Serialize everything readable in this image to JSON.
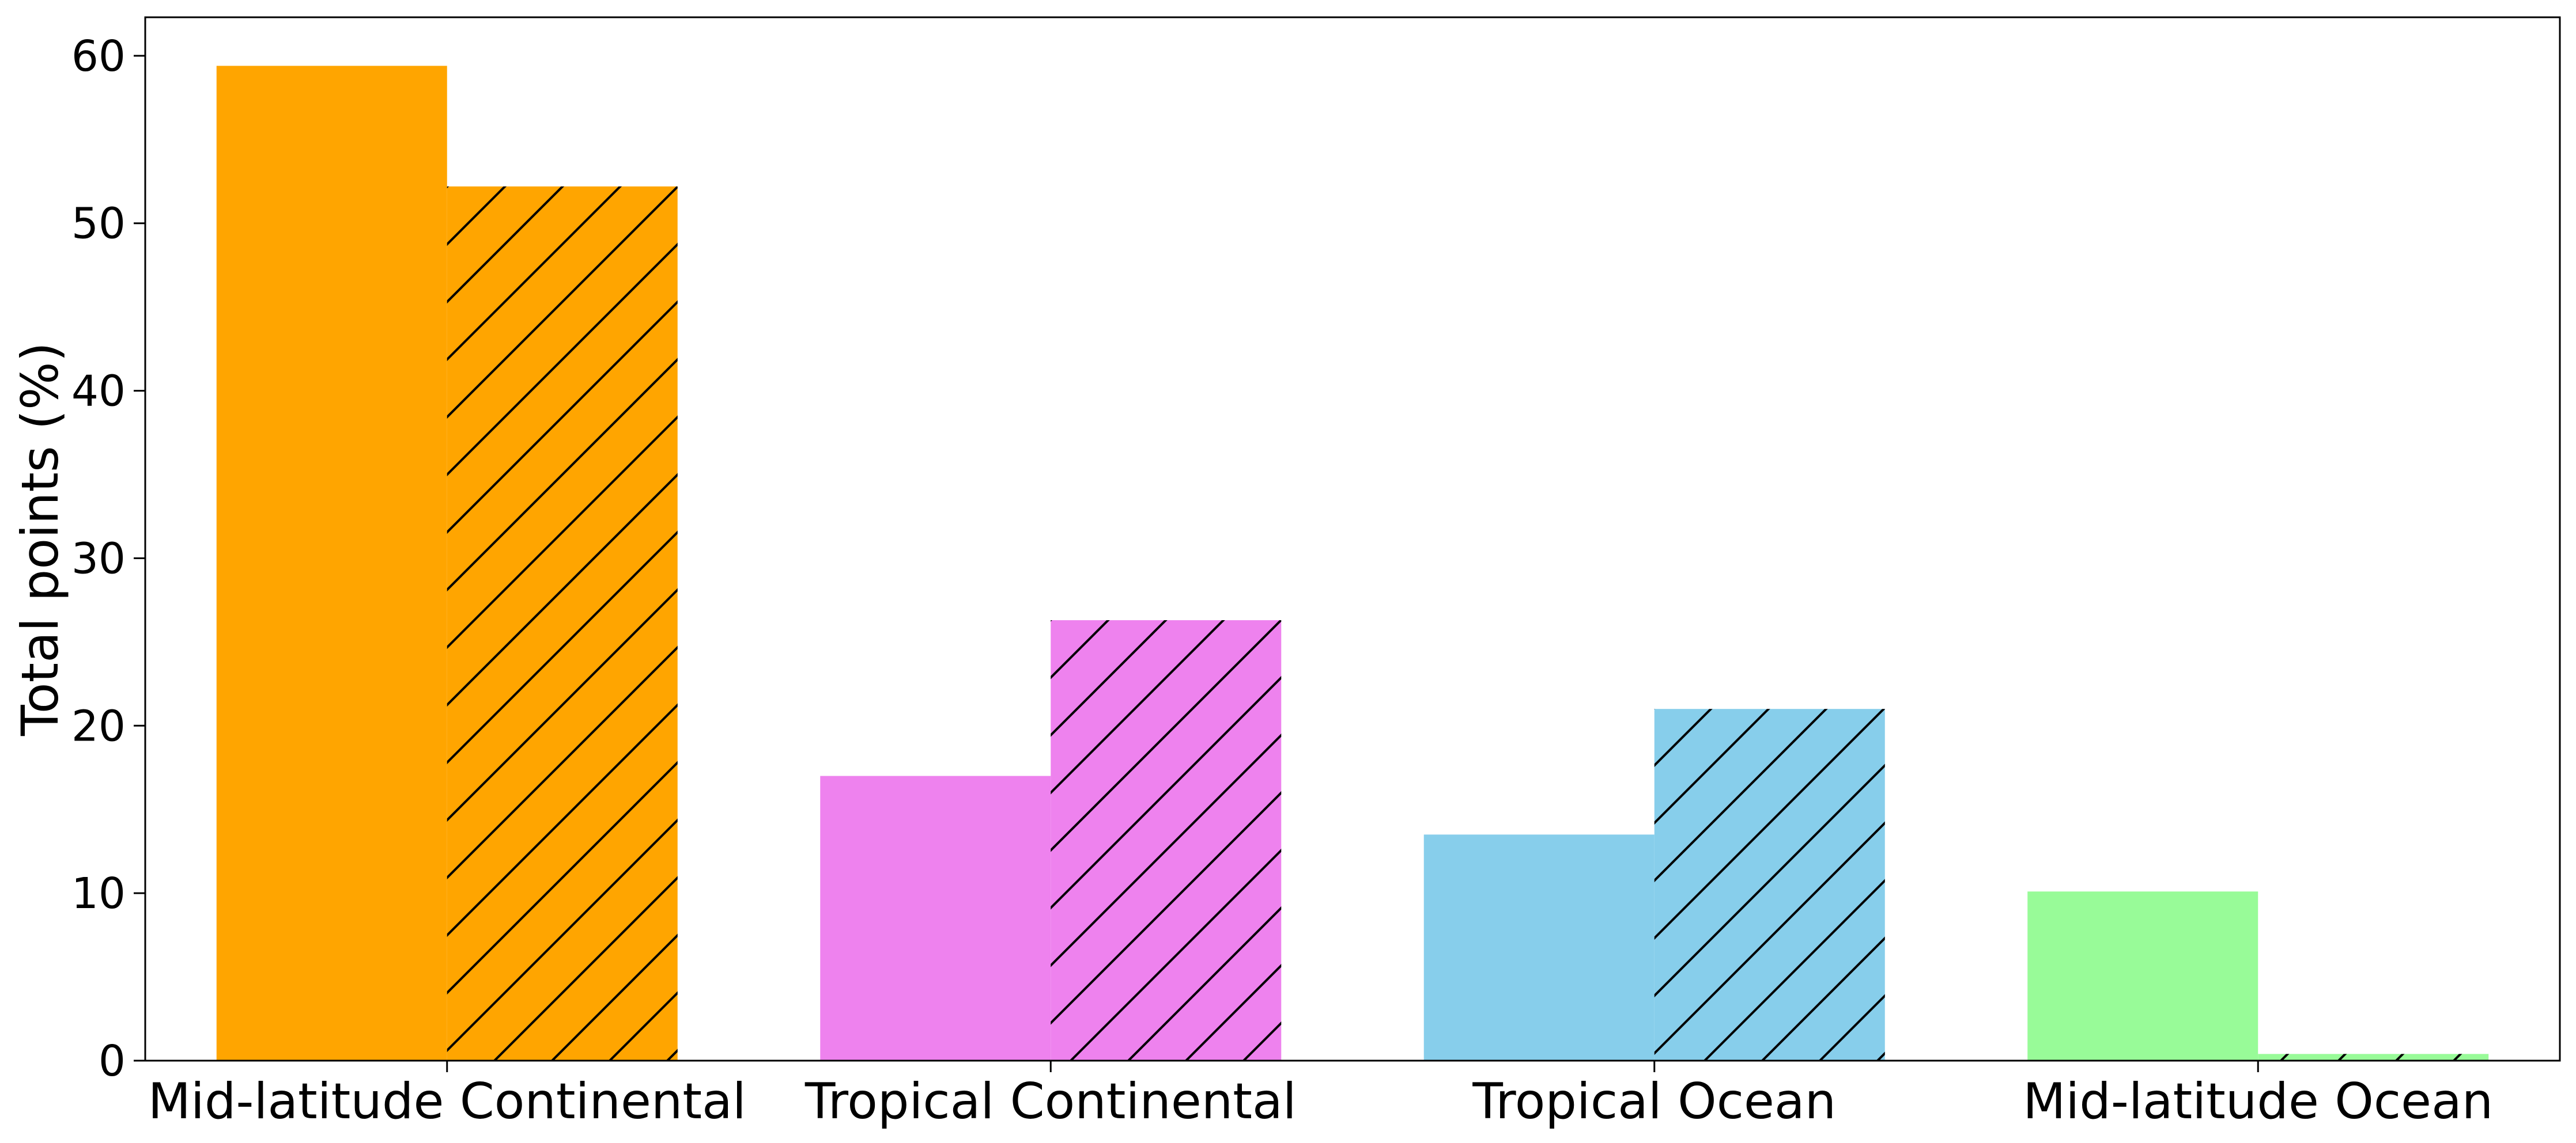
{
  "chart_data": {
    "type": "bar",
    "categories": [
      "Mid-latitude Continental",
      "Tropical Continental",
      "Tropical Ocean",
      "Mid-latitude Ocean"
    ],
    "colors": [
      "#FFA500",
      "#EE82EE",
      "#87CEEB",
      "#98FB98"
    ],
    "series": [
      {
        "hatch": "none",
        "values": [
          59.4,
          17.0,
          13.5,
          10.1
        ]
      },
      {
        "hatch": "diagonal",
        "values": [
          52.2,
          26.3,
          21.0,
          0.4
        ]
      }
    ],
    "ylabel": "Total points (%)",
    "xlabel": "",
    "ylim": [
      0,
      62.3
    ],
    "yticks": [
      0,
      10,
      20,
      30,
      40,
      50,
      60
    ],
    "grid": false
  }
}
